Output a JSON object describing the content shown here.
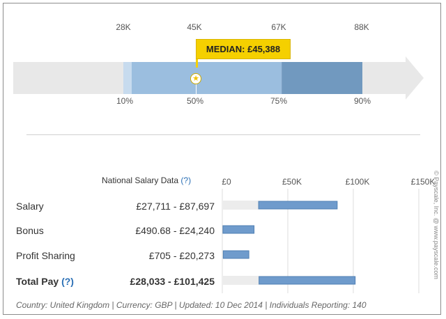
{
  "chart_data": [
    {
      "type": "bar",
      "orientation": "horizontal",
      "percentile_labels": [
        "10%",
        "50%",
        "75%",
        "90%"
      ],
      "percentile_values_k": [
        "28K",
        "45K",
        "67K",
        "88K"
      ],
      "percentiles": [
        {
          "p": 10,
          "value": 28000
        },
        {
          "p": 50,
          "value": 45388
        },
        {
          "p": 75,
          "value": 67000
        },
        {
          "p": 90,
          "value": 88000
        }
      ],
      "median_label": "MEDIAN: £45,388",
      "axis_range": [
        0,
        120000
      ],
      "colors": {
        "arrow": "#e8e8e8",
        "light": "#c7dbee",
        "mid": "#9bbedf",
        "dark": "#7199bf",
        "median": "#f5d000"
      }
    },
    {
      "type": "bar",
      "orientation": "horizontal-range",
      "header": "National Salary Data",
      "header_help": "(?)",
      "x_ticks": [
        "£0",
        "£50K",
        "£100K",
        "£150K"
      ],
      "x_tick_values": [
        0,
        50000,
        100000,
        150000
      ],
      "xlim": [
        0,
        150000
      ],
      "rows": [
        {
          "label": "Salary",
          "help": "",
          "range": "£27,711 - £87,697",
          "low": 27711,
          "high": 87697,
          "bold": false
        },
        {
          "label": "Bonus",
          "help": "",
          "range": "£490.68 - £24,240",
          "low": 490.68,
          "high": 24240,
          "bold": false
        },
        {
          "label": "Profit Sharing",
          "help": "",
          "range": "£705 - £20,273",
          "low": 705,
          "high": 20273,
          "bold": false
        },
        {
          "label": "Total Pay",
          "help": "(?)",
          "range": "£28,033 - £101,425",
          "low": 28033,
          "high": 101425,
          "bold": true
        }
      ],
      "colors": {
        "track": "#ececec",
        "bar": "#6f9bcc",
        "bar_edge": "#4f7fb3",
        "grid": "#dddddd"
      }
    }
  ],
  "footer": "Country: United Kingdom | Currency: GBP | Updated: 10 Dec 2014 | Individuals Reporting: 140",
  "watermark": "© Payscale, Inc. @ www.payscale.com"
}
